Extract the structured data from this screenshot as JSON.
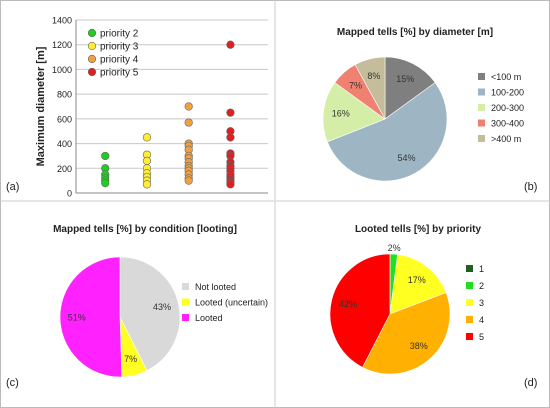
{
  "panels": {
    "a": {
      "label": "(a)"
    },
    "b": {
      "label": "(b)"
    },
    "c": {
      "label": "(c)"
    },
    "d": {
      "label": "(d)"
    }
  },
  "chart_data": [
    {
      "id": "a",
      "type": "scatter",
      "title": "",
      "xlabel": "",
      "ylabel": "Maximum diameter [m]",
      "ylim": [
        0,
        1400
      ],
      "yticks": [
        0,
        200,
        400,
        600,
        800,
        1000,
        1200,
        1400
      ],
      "grid": true,
      "legend_position": "top-left",
      "series": [
        {
          "name": "priority 2",
          "color": "#22cc22",
          "x": 1,
          "values": [
            300,
            200,
            150,
            120,
            100,
            80
          ]
        },
        {
          "name": "priority 3",
          "color": "#ffee33",
          "x": 2,
          "values": [
            450,
            310,
            260,
            200,
            160,
            130,
            100,
            70
          ]
        },
        {
          "name": "priority 4",
          "color": "#f0a040",
          "x": 3,
          "values": [
            700,
            570,
            400,
            380,
            350,
            300,
            280,
            250,
            220,
            200,
            180,
            150,
            120,
            100
          ]
        },
        {
          "name": "priority 5",
          "color": "#e02020",
          "x": 4,
          "values": [
            1200,
            650,
            500,
            450,
            320,
            300,
            250,
            220,
            200,
            180,
            150,
            130,
            110,
            90,
            70
          ]
        }
      ]
    },
    {
      "id": "b",
      "type": "pie",
      "title": "Mapped tells [%] by diameter [m]",
      "legend_position": "right",
      "slices": [
        {
          "name": "<100 m",
          "value": 15,
          "label": "15%",
          "color": "#7f7f7f"
        },
        {
          "name": "100-200",
          "value": 54,
          "label": "54%",
          "color": "#9eb6c4"
        },
        {
          "name": "200-300",
          "value": 16,
          "label": "16%",
          "color": "#d4eea8"
        },
        {
          "name": "300-400",
          "value": 7,
          "label": "7%",
          "color": "#f08070"
        },
        {
          "name": ">400 m",
          "value": 8,
          "label": "8%",
          "color": "#c4bc9a"
        }
      ]
    },
    {
      "id": "c",
      "type": "pie",
      "title": "Mapped tells [%] by condition [looting]",
      "legend_position": "right",
      "slices": [
        {
          "name": "Not looted",
          "value": 43,
          "label": "43%",
          "color": "#d9d9d9"
        },
        {
          "name": "Looted (uncertain)",
          "value": 7,
          "label": "7%",
          "color": "#ffff22"
        },
        {
          "name": "Looted",
          "value": 51,
          "label": "51%",
          "color": "#ff22ff"
        }
      ]
    },
    {
      "id": "d",
      "type": "pie",
      "title": "Looted tells [%] by priority",
      "legend_position": "right",
      "slices": [
        {
          "name": "1",
          "value": 0,
          "label": "",
          "color": "#1f5f1f"
        },
        {
          "name": "2",
          "value": 2,
          "label": "2%",
          "color": "#22dd22"
        },
        {
          "name": "3",
          "value": 17,
          "label": "17%",
          "color": "#ffff22"
        },
        {
          "name": "4",
          "value": 38,
          "label": "38%",
          "color": "#ffb000"
        },
        {
          "name": "5",
          "value": 42,
          "label": "42%",
          "color": "#ff0000"
        }
      ]
    }
  ]
}
